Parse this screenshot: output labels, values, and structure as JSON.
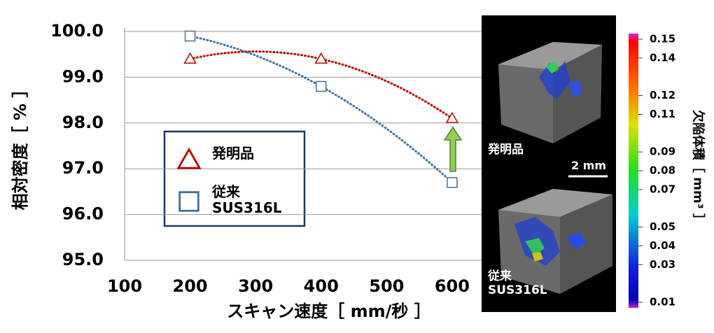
{
  "chart_data": {
    "type": "scatter",
    "xlabel": "スキャン速度［ mm/秒 ］",
    "ylabel": "相対密度［ % ］",
    "xlim": [
      100,
      645
    ],
    "ylim": [
      95,
      100
    ],
    "xticks": [
      100,
      200,
      300,
      400,
      500,
      600
    ],
    "yticks": [
      {
        "value": 95,
        "label": "95.0"
      },
      {
        "value": 96,
        "label": "96.0"
      },
      {
        "value": 97,
        "label": "97.0"
      },
      {
        "value": 98,
        "label": "98.0"
      },
      {
        "value": 99,
        "label": "99.0"
      },
      {
        "value": 100,
        "label": "100.0"
      }
    ],
    "grid": true,
    "series": [
      {
        "name": "発明品",
        "marker": "triangle",
        "color": "#c00000",
        "x": [
          200,
          400,
          600
        ],
        "values": [
          99.4,
          99.4,
          98.1
        ]
      },
      {
        "name": "従来\nSUS316L",
        "marker": "square",
        "color": "#41719c",
        "x": [
          200,
          400,
          600
        ],
        "values": [
          99.9,
          98.8,
          96.7
        ]
      }
    ],
    "colorbar": {
      "label": "欠陥体積［ mm³ ］",
      "clim": [
        0.01,
        0.15
      ],
      "ticks": [
        0.15,
        0.14,
        0.12,
        0.11,
        0.09,
        0.08,
        0.07,
        0.05,
        0.04,
        0.03,
        0.01
      ]
    },
    "images": [
      {
        "label": "発明品"
      },
      {
        "label": "従来\nSUS316L"
      }
    ],
    "scale_bar": "2 mm"
  }
}
